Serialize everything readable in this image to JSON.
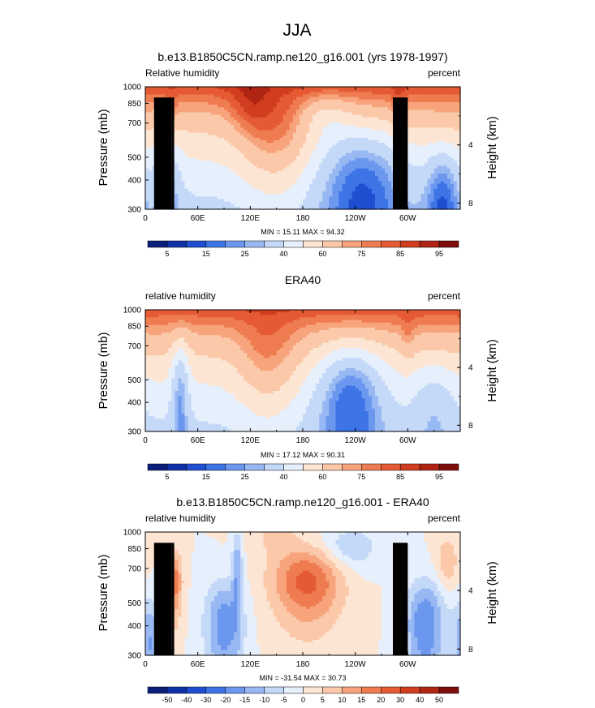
{
  "main_title": "JJA",
  "colors": {
    "rh_levels": [
      "#0a1f7a",
      "#1030a8",
      "#1f4fd0",
      "#3d74e6",
      "#6b97ee",
      "#98b8f3",
      "#c4d8f8",
      "#e6effc",
      "#fde5d3",
      "#fbc9a9",
      "#f7a47c",
      "#ef7c51",
      "#e55a33",
      "#d13d1f",
      "#b02414",
      "#7e0e09"
    ],
    "diff_levels": [
      "#0a1f7a",
      "#1030a8",
      "#1f4fd0",
      "#3d74e6",
      "#6b97ee",
      "#98b8f3",
      "#c4d8f8",
      "#e6effc",
      "#fde5d3",
      "#fbc9a9",
      "#f7a47c",
      "#ef7c51",
      "#e55a33",
      "#d13d1f",
      "#b02414",
      "#7e0e09"
    ]
  },
  "chart_data": [
    {
      "type": "heatmap",
      "title": "b.e13.B1850C5CN.ramp.ne120_g16.001 (yrs 1978-1997)",
      "left_label": "Relative humidity",
      "right_label": "percent",
      "ylabel": "Pressure (mb)",
      "ylabel_right": "Height (km)",
      "x_ticks": [
        "0",
        "60E",
        "120E",
        "180",
        "120W",
        "60W"
      ],
      "x_tick_lon": [
        0,
        60,
        120,
        180,
        240,
        300
      ],
      "xlim": [
        0,
        360
      ],
      "y_ticks": [
        "300",
        "400",
        "500",
        "700",
        "850",
        "1000"
      ],
      "y_tick_p": [
        300,
        400,
        500,
        700,
        850,
        1000
      ],
      "ylim": [
        1000,
        300
      ],
      "height_ticks": [
        "8",
        "4"
      ],
      "height_tick_km": [
        8,
        4
      ],
      "stats": "MIN =  15.11  MAX =  94.32",
      "colorbar_labels": [
        "5",
        "15",
        "25",
        "40",
        "60",
        "75",
        "85",
        "95"
      ],
      "levels": [
        5,
        10,
        15,
        20,
        25,
        30,
        40,
        50,
        60,
        70,
        75,
        80,
        85,
        90,
        95
      ]
    },
    {
      "type": "heatmap",
      "title": "ERA40",
      "left_label": "relative humidity",
      "right_label": "percent",
      "ylabel": "Pressure (mb)",
      "ylabel_right": "Height (km)",
      "x_ticks": [
        "0",
        "60E",
        "120E",
        "180",
        "120W",
        "60W"
      ],
      "x_tick_lon": [
        0,
        60,
        120,
        180,
        240,
        300
      ],
      "xlim": [
        0,
        360
      ],
      "y_ticks": [
        "300",
        "400",
        "500",
        "700",
        "850",
        "1000"
      ],
      "y_tick_p": [
        300,
        400,
        500,
        700,
        850,
        1000
      ],
      "ylim": [
        1000,
        300
      ],
      "height_ticks": [
        "8",
        "4"
      ],
      "height_tick_km": [
        8,
        4
      ],
      "stats": "MIN =  17.12  MAX =  90.31",
      "colorbar_labels": [
        "5",
        "15",
        "25",
        "40",
        "60",
        "75",
        "85",
        "95"
      ],
      "levels": [
        5,
        10,
        15,
        20,
        25,
        30,
        40,
        50,
        60,
        70,
        75,
        80,
        85,
        90,
        95
      ]
    },
    {
      "type": "heatmap",
      "title": "b.e13.B1850C5CN.ramp.ne120_g16.001 - ERA40",
      "left_label": "relative humidity",
      "right_label": "percent",
      "ylabel": "Pressure (mb)",
      "ylabel_right": "Height (km)",
      "x_ticks": [
        "0",
        "60E",
        "120E",
        "180",
        "120W",
        "60W"
      ],
      "x_tick_lon": [
        0,
        60,
        120,
        180,
        240,
        300
      ],
      "xlim": [
        0,
        360
      ],
      "y_ticks": [
        "300",
        "400",
        "500",
        "700",
        "850",
        "1000"
      ],
      "y_tick_p": [
        300,
        400,
        500,
        700,
        850,
        1000
      ],
      "ylim": [
        1000,
        300
      ],
      "height_ticks": [
        "8",
        "4"
      ],
      "height_tick_km": [
        8,
        4
      ],
      "stats": "MIN = -31.54  MAX =  30.73",
      "colorbar_labels": [
        "-50",
        "-40",
        "-30",
        "-20",
        "-15",
        "-10",
        "-5",
        "0",
        "5",
        "10",
        "15",
        "20",
        "30",
        "40",
        "50"
      ],
      "levels": [
        -50,
        -40,
        -30,
        -20,
        -15,
        -10,
        -5,
        0,
        5,
        10,
        15,
        20,
        30,
        40,
        50
      ]
    }
  ]
}
